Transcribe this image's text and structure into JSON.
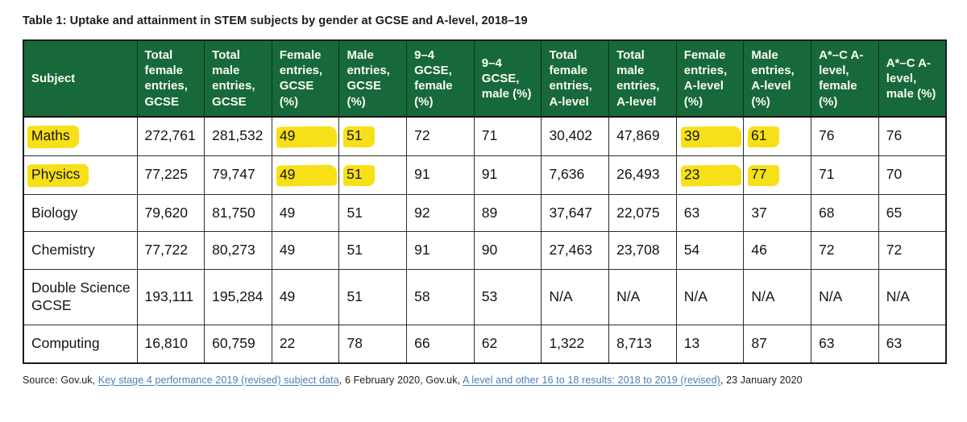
{
  "title": "Table 1: Uptake and attainment in STEM subjects by gender at GCSE and A-level, 2018–19",
  "colors": {
    "header_green": "#17693c",
    "highlight_yellow": "#f7e017",
    "link_blue": "#4a7eb5"
  },
  "table": {
    "header": [
      "Subject",
      "Total female entries, GCSE",
      "Total male entries, GCSE",
      "Female entries, GCSE (%)",
      "Male entries, GCSE (%)",
      "9–4 GCSE, female (%)",
      "9–4 GCSE, male (%)",
      "Total female entries, A-level",
      "Total male entries, A-level",
      "Female entries, A-level (%)",
      "Male entries, A-level (%)",
      "A*–C A-level, female (%)",
      "A*–C A-level, male (%)"
    ],
    "rows": [
      {
        "subject": "Maths",
        "subject_highlighted": true,
        "cells": [
          "272,761",
          "281,532",
          "49",
          "51",
          "72",
          "71",
          "30,402",
          "47,869",
          "39",
          "61",
          "76",
          "76"
        ],
        "highlighted_cells": [
          2,
          3,
          8,
          9
        ]
      },
      {
        "subject": "Physics",
        "subject_highlighted": true,
        "cells": [
          "77,225",
          "79,747",
          "49",
          "51",
          "91",
          "91",
          "7,636",
          "26,493",
          "23",
          "77",
          "71",
          "70"
        ],
        "highlighted_cells": [
          2,
          3,
          8,
          9
        ]
      },
      {
        "subject": "Biology",
        "subject_highlighted": false,
        "cells": [
          "79,620",
          "81,750",
          "49",
          "51",
          "92",
          "89",
          "37,647",
          "22,075",
          "63",
          "37",
          "68",
          "65"
        ],
        "highlighted_cells": []
      },
      {
        "subject": "Chemistry",
        "subject_highlighted": false,
        "cells": [
          "77,722",
          "80,273",
          "49",
          "51",
          "91",
          "90",
          "27,463",
          "23,708",
          "54",
          "46",
          "72",
          "72"
        ],
        "highlighted_cells": []
      },
      {
        "subject": "Double Science GCSE",
        "subject_highlighted": false,
        "cells": [
          "193,111",
          "195,284",
          "49",
          "51",
          "58",
          "53",
          "N/A",
          "N/A",
          "N/A",
          "N/A",
          "N/A",
          "N/A"
        ],
        "highlighted_cells": []
      },
      {
        "subject": "Computing",
        "subject_highlighted": false,
        "cells": [
          "16,810",
          "60,759",
          "22",
          "78",
          "66",
          "62",
          "1,322",
          "8,713",
          "13",
          "87",
          "63",
          "63"
        ],
        "highlighted_cells": []
      }
    ]
  },
  "footer": {
    "prefix": "Source: Gov.uk, ",
    "link1": "Key stage 4 performance 2019 (revised) subject data",
    "middle": ", 6 February 2020, Gov.uk, ",
    "link2": "A level and other 16 to 18 results: 2018 to 2019 (revised)",
    "suffix": ", 23 January 2020"
  }
}
